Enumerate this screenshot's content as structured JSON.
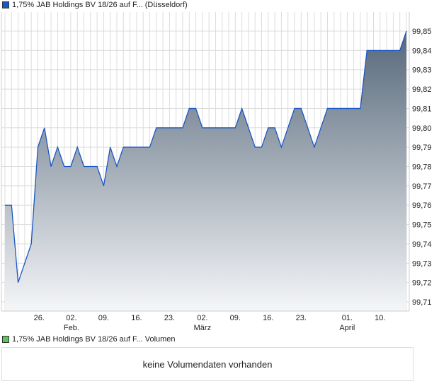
{
  "legend_price": {
    "label": "1,75% JAB Holdings BV 18/26 auf F... (Düsseldorf)",
    "color": "#1a56c4"
  },
  "legend_volume": {
    "label": "1,75% JAB Holdings BV 18/26 auf F... Volumen",
    "color": "#5cc45c"
  },
  "volume_message": "keine Volumendaten vorhanden",
  "chart_data": {
    "type": "area",
    "title": "1,75% JAB Holdings BV 18/26 auf F... (Düsseldorf)",
    "xlabel": "",
    "ylabel": "",
    "ylim": [
      99.705,
      99.855
    ],
    "xlim": [
      0,
      61
    ],
    "y_ticks": [
      "99,71",
      "99,72",
      "99,73",
      "99,74",
      "99,75",
      "99,76",
      "99,77",
      "99,78",
      "99,79",
      "99,80",
      "99,81",
      "99,82",
      "99,83",
      "99,84",
      "99,85"
    ],
    "x_ticks": [
      {
        "pos": 5.2,
        "label": "26.",
        "sub": ""
      },
      {
        "pos": 10.1,
        "label": "02.",
        "sub": "Feb."
      },
      {
        "pos": 15,
        "label": "09.",
        "sub": ""
      },
      {
        "pos": 20,
        "label": "16.",
        "sub": ""
      },
      {
        "pos": 25,
        "label": "23.",
        "sub": ""
      },
      {
        "pos": 30,
        "label": "02.",
        "sub": "März"
      },
      {
        "pos": 35,
        "label": "09.",
        "sub": ""
      },
      {
        "pos": 40,
        "label": "16.",
        "sub": ""
      },
      {
        "pos": 45,
        "label": "23.",
        "sub": ""
      },
      {
        "pos": 52,
        "label": "01.",
        "sub": "April"
      },
      {
        "pos": 57,
        "label": "10.",
        "sub": ""
      }
    ],
    "x": [
      0,
      1,
      2,
      4,
      5,
      6,
      7,
      8,
      9,
      10,
      11,
      12,
      14,
      15,
      16,
      17,
      18,
      22,
      23,
      27,
      28,
      29,
      30,
      35,
      36,
      38,
      39,
      40,
      41,
      42,
      44,
      45,
      47,
      49,
      54,
      55,
      60,
      61
    ],
    "values": [
      99.76,
      99.76,
      99.72,
      99.74,
      99.79,
      99.8,
      99.78,
      99.79,
      99.78,
      99.78,
      99.79,
      99.78,
      99.78,
      99.77,
      99.79,
      99.78,
      99.79,
      99.79,
      99.8,
      99.8,
      99.81,
      99.81,
      99.8,
      99.8,
      99.81,
      99.79,
      99.79,
      99.8,
      99.8,
      99.79,
      99.81,
      99.81,
      99.79,
      99.81,
      99.81,
      99.84,
      99.84,
      99.85
    ],
    "grid": true,
    "line_color": "#1a56c4",
    "fill_top": "#56687a",
    "fill_bottom": "#f5f6f8"
  }
}
